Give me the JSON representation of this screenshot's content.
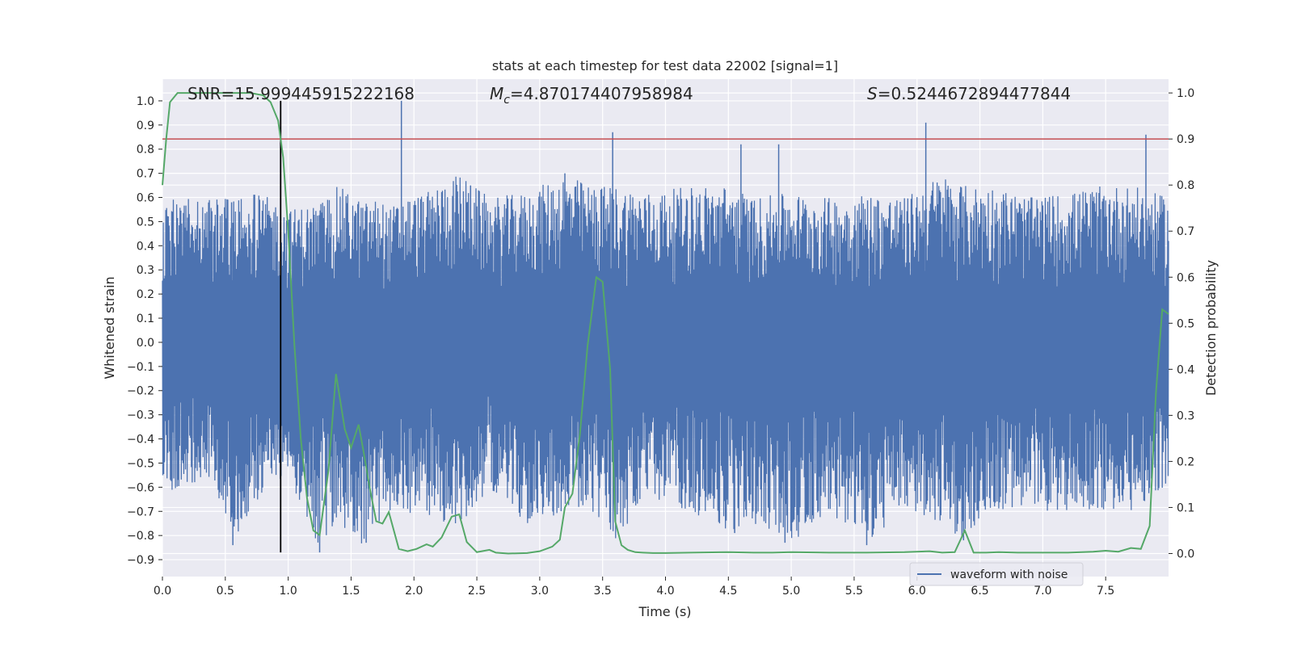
{
  "colors": {
    "axes_bg": "#eaeaf2",
    "grid": "#ffffff",
    "waveform": "#4c72b0",
    "probability": "#55a868",
    "threshold": "#c44e52",
    "marker": "#000000",
    "text": "#262626"
  },
  "chart_data": {
    "type": "line",
    "title": "stats at each timestep for test data 22002 [signal=1]",
    "xlabel": "Time (s)",
    "ylabel_left": "Whitened strain",
    "ylabel_right": "Detection probability",
    "xlim": [
      0.0,
      8.0
    ],
    "ylim_left": [
      -0.97,
      1.09
    ],
    "ylim_right": [
      -0.05,
      1.03
    ],
    "grid": true,
    "legend_position": "lower-right",
    "x_ticks": [
      0.0,
      0.5,
      1.0,
      1.5,
      2.0,
      2.5,
      3.0,
      3.5,
      4.0,
      4.5,
      5.0,
      5.5,
      6.0,
      6.5,
      7.0,
      7.5
    ],
    "x_tick_labels": [
      "0.0",
      "0.5",
      "1.0",
      "1.5",
      "2.0",
      "2.5",
      "3.0",
      "3.5",
      "4.0",
      "4.5",
      "5.0",
      "5.5",
      "6.0",
      "6.5",
      "7.0",
      "7.5"
    ],
    "y_left_ticks": [
      1.0,
      0.9,
      0.8,
      0.7,
      0.6,
      0.5,
      0.4,
      0.3,
      0.2,
      0.1,
      0.0,
      -0.1,
      -0.2,
      -0.3,
      -0.4,
      -0.5,
      -0.6,
      -0.7,
      -0.8,
      -0.9
    ],
    "y_left_tick_labels": [
      "1.0",
      "0.9",
      "0.8",
      "0.7",
      "0.6",
      "0.5",
      "0.4",
      "0.3",
      "0.2",
      "0.1",
      "0.0",
      "−0.1",
      "−0.2",
      "−0.3",
      "−0.4",
      "−0.5",
      "−0.6",
      "−0.7",
      "−0.8",
      "−0.9"
    ],
    "y_right_ticks": [
      1.0,
      0.9,
      0.8,
      0.7,
      0.6,
      0.5,
      0.4,
      0.3,
      0.2,
      0.1,
      0.0
    ],
    "y_right_tick_labels": [
      "1.0",
      "0.9",
      "0.8",
      "0.7",
      "0.6",
      "0.5",
      "0.4",
      "0.3",
      "0.2",
      "0.1",
      "0.0"
    ],
    "annotations": {
      "snr": "SNR=15.999445915222168",
      "mc_symbol": "M",
      "mc_subscript": "c",
      "mc_value": "=4.870174407958984",
      "s_symbol": "S",
      "s_value": "=0.5244672894477844"
    },
    "threshold_probability": 0.9,
    "marker_time": 0.94,
    "marker_strain_range": [
      -0.87,
      1.0
    ],
    "waveform": {
      "name": "waveform with noise",
      "envelope": [
        [
          0.0,
          0.55,
          -0.65
        ],
        [
          0.2,
          0.65,
          -0.6
        ],
        [
          0.4,
          0.6,
          -0.55
        ],
        [
          0.55,
          0.6,
          -0.85
        ],
        [
          0.7,
          0.62,
          -0.69
        ],
        [
          0.85,
          0.6,
          -0.6
        ],
        [
          1.0,
          0.55,
          -0.55
        ],
        [
          1.25,
          0.58,
          -0.87
        ],
        [
          1.4,
          0.65,
          -0.75
        ],
        [
          1.6,
          0.58,
          -0.85
        ],
        [
          1.73,
          0.6,
          -0.75
        ],
        [
          1.8,
          0.55,
          -0.8
        ],
        [
          1.9,
          0.6,
          -0.7
        ],
        [
          2.1,
          0.62,
          -0.72
        ],
        [
          2.35,
          0.7,
          -0.78
        ],
        [
          2.6,
          0.6,
          -0.6
        ],
        [
          2.9,
          0.62,
          -0.76
        ],
        [
          3.2,
          0.7,
          -0.7
        ],
        [
          3.4,
          0.65,
          -0.7
        ],
        [
          3.6,
          0.65,
          -0.82
        ],
        [
          3.9,
          0.62,
          -0.65
        ],
        [
          4.2,
          0.65,
          -0.7
        ],
        [
          4.5,
          0.65,
          -0.79
        ],
        [
          4.7,
          0.6,
          -0.75
        ],
        [
          5.0,
          0.62,
          -0.83
        ],
        [
          5.3,
          0.6,
          -0.7
        ],
        [
          5.6,
          0.62,
          -0.84
        ],
        [
          5.9,
          0.6,
          -0.7
        ],
        [
          6.2,
          0.7,
          -0.75
        ],
        [
          6.37,
          0.65,
          -0.82
        ],
        [
          6.6,
          0.65,
          -0.7
        ],
        [
          6.9,
          0.6,
          -0.7
        ],
        [
          7.2,
          0.62,
          -0.7
        ],
        [
          7.5,
          0.65,
          -0.7
        ],
        [
          7.7,
          0.65,
          -0.7
        ],
        [
          8.0,
          0.6,
          -0.61
        ]
      ],
      "peaks": [
        [
          0.55,
          0.58
        ],
        [
          1.9,
          1.0
        ],
        [
          2.45,
          0.65
        ],
        [
          3.2,
          0.7
        ],
        [
          3.58,
          0.87
        ],
        [
          4.6,
          0.82
        ],
        [
          4.9,
          0.82
        ],
        [
          6.07,
          0.91
        ],
        [
          7.82,
          0.86
        ],
        [
          6.37,
          -0.82
        ],
        [
          1.25,
          -0.87
        ],
        [
          1.62,
          -0.83
        ],
        [
          5.6,
          -0.84
        ],
        [
          0.56,
          -0.84
        ],
        [
          4.95,
          -0.83
        ],
        [
          4.55,
          -0.79
        ]
      ]
    },
    "probability": {
      "x": [
        0.0,
        0.03,
        0.06,
        0.12,
        0.2,
        0.3,
        0.45,
        0.6,
        0.7,
        0.8,
        0.86,
        0.92,
        0.96,
        1.0,
        1.05,
        1.1,
        1.15,
        1.2,
        1.25,
        1.32,
        1.38,
        1.45,
        1.5,
        1.56,
        1.6,
        1.65,
        1.7,
        1.75,
        1.8,
        1.88,
        1.95,
        2.02,
        2.1,
        2.15,
        2.22,
        2.3,
        2.36,
        2.42,
        2.5,
        2.6,
        2.65,
        2.75,
        2.9,
        3.0,
        3.1,
        3.16,
        3.2,
        3.26,
        3.32,
        3.38,
        3.45,
        3.5,
        3.56,
        3.6,
        3.65,
        3.7,
        3.76,
        3.82,
        3.9,
        4.0,
        4.2,
        4.5,
        4.7,
        4.85,
        5.0,
        5.3,
        5.6,
        5.9,
        6.1,
        6.2,
        6.3,
        6.38,
        6.45,
        6.55,
        6.65,
        6.8,
        7.0,
        7.2,
        7.4,
        7.5,
        7.6,
        7.7,
        7.78,
        7.85,
        7.9,
        7.95,
        8.0
      ],
      "y": [
        0.8,
        0.9,
        0.98,
        1.0,
        1.0,
        1.0,
        1.0,
        1.0,
        1.0,
        0.995,
        0.98,
        0.94,
        0.86,
        0.7,
        0.45,
        0.25,
        0.12,
        0.05,
        0.04,
        0.18,
        0.39,
        0.27,
        0.23,
        0.28,
        0.22,
        0.14,
        0.07,
        0.065,
        0.09,
        0.01,
        0.005,
        0.01,
        0.02,
        0.015,
        0.035,
        0.08,
        0.085,
        0.025,
        0.003,
        0.008,
        0.002,
        0.0,
        0.001,
        0.005,
        0.015,
        0.03,
        0.1,
        0.13,
        0.26,
        0.45,
        0.6,
        0.59,
        0.4,
        0.07,
        0.018,
        0.008,
        0.003,
        0.002,
        0.001,
        0.001,
        0.002,
        0.003,
        0.002,
        0.002,
        0.003,
        0.002,
        0.002,
        0.003,
        0.005,
        0.002,
        0.003,
        0.05,
        0.002,
        0.002,
        0.003,
        0.002,
        0.002,
        0.002,
        0.004,
        0.006,
        0.004,
        0.012,
        0.01,
        0.06,
        0.35,
        0.53,
        0.52
      ]
    }
  }
}
